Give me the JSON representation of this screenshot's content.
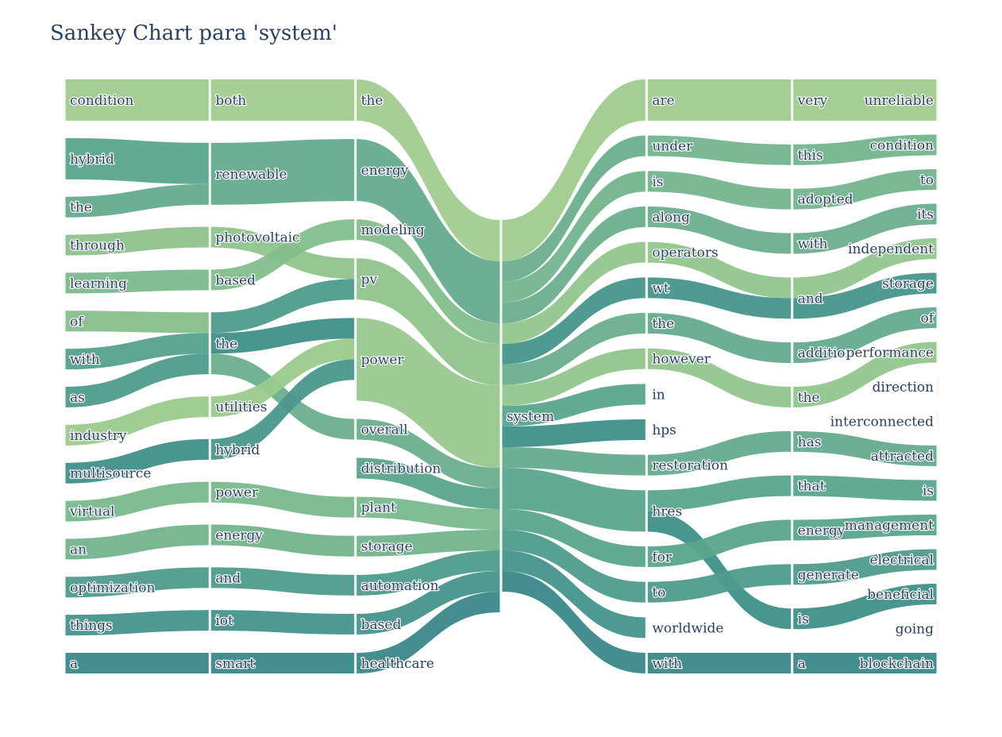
{
  "chart_data": {
    "type": "sankey",
    "title": "Sankey Chart para 'system'",
    "columns": [
      [
        "condition",
        "hybrid",
        "the",
        "through",
        "learning",
        "of",
        "with",
        "as",
        "industry",
        "multisource",
        "virtual",
        "an",
        "optimization",
        "things",
        "a"
      ],
      [
        "both",
        "renewable",
        "photovoltaic",
        "based",
        "the",
        "utilities",
        "hybrid",
        "power",
        "energy",
        "and",
        "iot",
        "smart"
      ],
      [
        "the",
        "energy",
        "modeling",
        "pv",
        "power",
        "overall",
        "distribution",
        "plant",
        "storage",
        "automation",
        "based",
        "healthcare"
      ],
      [
        "system"
      ],
      [
        "are",
        "under",
        "is",
        "along",
        "operators",
        "wt",
        "the",
        "however",
        "in",
        "hps",
        "restoration",
        "hres",
        "for",
        "to",
        "worldwide",
        "with"
      ],
      [
        "very",
        "this",
        "adopted",
        "with",
        "and",
        "addition",
        "the",
        "has",
        "that",
        "energy",
        "generate",
        "is",
        "a"
      ],
      [
        "unreliable",
        "condition",
        "to",
        "its",
        "independent",
        "storage",
        "of",
        "performance",
        "direction",
        "interconnected",
        "attracted",
        "is",
        "management",
        "electrical",
        "beneficial",
        "going",
        "blockchain"
      ]
    ],
    "node_values": [
      [
        2,
        2,
        1,
        1,
        1,
        1,
        1,
        1,
        1,
        1,
        1,
        1,
        1,
        1,
        1
      ],
      [
        2,
        3,
        1,
        1,
        3,
        1,
        1,
        1,
        1,
        1,
        1,
        1
      ],
      [
        2,
        3,
        1,
        2,
        4,
        1,
        1,
        1,
        1,
        1,
        1,
        1
      ],
      [
        19
      ],
      [
        2,
        1,
        1,
        1,
        1,
        1,
        1,
        1,
        1,
        1,
        1,
        2,
        1,
        1,
        1,
        1
      ],
      [
        2,
        1,
        1,
        1,
        2,
        1,
        1,
        1,
        1,
        1,
        1,
        1,
        1
      ],
      [
        2,
        1,
        1,
        1,
        1,
        1,
        1,
        1,
        1,
        1,
        1,
        1,
        1,
        1,
        1,
        1,
        1
      ]
    ],
    "links": [
      {
        "source": "0:condition",
        "target": "1:both",
        "value": 2,
        "color": "#9fcb8e"
      },
      {
        "source": "0:hybrid",
        "target": "1:renewable",
        "value": 2,
        "color": "#5aa58e"
      },
      {
        "source": "0:the",
        "target": "1:renewable",
        "value": 1,
        "color": "#64ab8f"
      },
      {
        "source": "0:through",
        "target": "1:photovoltaic",
        "value": 1,
        "color": "#8ec28c"
      },
      {
        "source": "0:learning",
        "target": "1:based",
        "value": 1,
        "color": "#7cb98e"
      },
      {
        "source": "0:of",
        "target": "1:the",
        "value": 1,
        "color": "#86bf8b"
      },
      {
        "source": "0:with",
        "target": "1:the",
        "value": 1,
        "color": "#55a18d"
      },
      {
        "source": "0:as",
        "target": "1:the",
        "value": 1,
        "color": "#4f9b8c"
      },
      {
        "source": "0:industry",
        "target": "1:utilities",
        "value": 1,
        "color": "#9aca8c"
      },
      {
        "source": "0:multisource",
        "target": "1:hybrid",
        "value": 1,
        "color": "#3f8f8a"
      },
      {
        "source": "0:virtual",
        "target": "1:power",
        "value": 1,
        "color": "#7ab98d"
      },
      {
        "source": "0:an",
        "target": "1:energy",
        "value": 1,
        "color": "#73b48e"
      },
      {
        "source": "0:optimization",
        "target": "1:and",
        "value": 1,
        "color": "#4f9c8c"
      },
      {
        "source": "0:things",
        "target": "1:iot",
        "value": 1,
        "color": "#45948b"
      },
      {
        "source": "0:a",
        "target": "1:smart",
        "value": 1,
        "color": "#3a888a"
      },
      {
        "source": "1:both",
        "target": "2:the",
        "value": 2,
        "color": "#a2cc8f"
      },
      {
        "source": "1:renewable",
        "target": "2:energy",
        "value": 3,
        "color": "#64ab8f"
      },
      {
        "source": "1:photovoltaic",
        "target": "2:pv",
        "value": 1,
        "color": "#8fc48c"
      },
      {
        "source": "1:based",
        "target": "2:modeling",
        "value": 1,
        "color": "#84be8c"
      },
      {
        "source": "1:the",
        "target": "2:pv",
        "value": 1,
        "color": "#4f9c8c"
      },
      {
        "source": "1:the",
        "target": "2:power",
        "value": 1,
        "color": "#3f8f8a"
      },
      {
        "source": "1:the",
        "target": "2:overall",
        "value": 1,
        "color": "#6caf8e"
      },
      {
        "source": "1:utilities",
        "target": "2:power",
        "value": 1,
        "color": "#9aca8c"
      },
      {
        "source": "1:hybrid",
        "target": "2:power",
        "value": 1,
        "color": "#4a978b"
      },
      {
        "source": "1:hybrid",
        "target": "2:distribution",
        "value": 0.0001,
        "color": "#5aa58e"
      },
      {
        "source": "1:power",
        "target": "2:plant",
        "value": 1,
        "color": "#7ab98d"
      },
      {
        "source": "1:energy",
        "target": "2:storage",
        "value": 1,
        "color": "#73b48e"
      },
      {
        "source": "1:and",
        "target": "2:automation",
        "value": 1,
        "color": "#4f9c8c"
      },
      {
        "source": "1:iot",
        "target": "2:based",
        "value": 1,
        "color": "#45948b"
      },
      {
        "source": "1:smart",
        "target": "2:healthcare",
        "value": 1,
        "color": "#3a888a"
      },
      {
        "source": "1:the",
        "target": "2:distribution",
        "value": 0.0001,
        "color": "#5aa58e"
      },
      {
        "source": "2:the",
        "target": "3:system",
        "value": 2,
        "color": "#a2cc8f"
      },
      {
        "source": "2:energy",
        "target": "3:system",
        "value": 3,
        "color": "#64ab8f"
      },
      {
        "source": "2:modeling",
        "target": "3:system",
        "value": 1,
        "color": "#84be8c"
      },
      {
        "source": "2:pv",
        "target": "3:system",
        "value": 2,
        "color": "#90c48c"
      },
      {
        "source": "2:power",
        "target": "3:system",
        "value": 4,
        "color": "#98c88d"
      },
      {
        "source": "2:overall",
        "target": "3:system",
        "value": 1,
        "color": "#6caf8e"
      },
      {
        "source": "2:distribution",
        "target": "3:system",
        "value": 1,
        "color": "#5aa58e"
      },
      {
        "source": "2:plant",
        "target": "3:system",
        "value": 1,
        "color": "#7ab98d"
      },
      {
        "source": "2:storage",
        "target": "3:system",
        "value": 1,
        "color": "#73b48e"
      },
      {
        "source": "2:automation",
        "target": "3:system",
        "value": 1,
        "color": "#4f9c8c"
      },
      {
        "source": "2:based",
        "target": "3:system",
        "value": 1,
        "color": "#45948b"
      },
      {
        "source": "2:healthcare",
        "target": "3:system",
        "value": 1,
        "color": "#3a888a"
      },
      {
        "source": "3:system",
        "target": "4:are",
        "value": 2,
        "color": "#9fcb8e"
      },
      {
        "source": "3:system",
        "target": "4:under",
        "value": 1,
        "color": "#6caf8e"
      },
      {
        "source": "3:system",
        "target": "4:is",
        "value": 1,
        "color": "#74b48e"
      },
      {
        "source": "3:system",
        "target": "4:along",
        "value": 1,
        "color": "#6caf8e"
      },
      {
        "source": "3:system",
        "target": "4:operators",
        "value": 1,
        "color": "#94c68c"
      },
      {
        "source": "3:system",
        "target": "4:wt",
        "value": 1,
        "color": "#46968b"
      },
      {
        "source": "3:system",
        "target": "4:the",
        "value": 1,
        "color": "#6caf8e"
      },
      {
        "source": "3:system",
        "target": "4:however",
        "value": 1,
        "color": "#94c68c"
      },
      {
        "source": "3:system",
        "target": "4:in",
        "value": 1,
        "color": "#5aa58e"
      },
      {
        "source": "3:system",
        "target": "4:hps",
        "value": 1,
        "color": "#3f8f8a"
      },
      {
        "source": "3:system",
        "target": "4:restoration",
        "value": 1,
        "color": "#64ab8f"
      },
      {
        "source": "3:system",
        "target": "4:hres",
        "value": 2,
        "color": "#5aa58e"
      },
      {
        "source": "3:system",
        "target": "4:for",
        "value": 1,
        "color": "#5aa58e"
      },
      {
        "source": "3:system",
        "target": "4:to",
        "value": 1,
        "color": "#4f9c8c"
      },
      {
        "source": "3:system",
        "target": "4:worldwide",
        "value": 1,
        "color": "#45948b"
      },
      {
        "source": "3:system",
        "target": "4:with",
        "value": 1,
        "color": "#3a888a"
      },
      {
        "source": "4:are",
        "target": "5:very",
        "value": 2,
        "color": "#9fcb8e"
      },
      {
        "source": "4:under",
        "target": "5:this",
        "value": 1,
        "color": "#74b48e"
      },
      {
        "source": "4:is",
        "target": "5:adopted",
        "value": 1,
        "color": "#74b48e"
      },
      {
        "source": "4:along",
        "target": "5:with",
        "value": 1,
        "color": "#6caf8e"
      },
      {
        "source": "4:operators",
        "target": "5:and",
        "value": 1,
        "color": "#94c68c"
      },
      {
        "source": "4:wt",
        "target": "5:and",
        "value": 1,
        "color": "#46968b"
      },
      {
        "source": "4:the",
        "target": "5:addition",
        "value": 1,
        "color": "#64ab8f"
      },
      {
        "source": "4:however",
        "target": "5:the",
        "value": 1,
        "color": "#94c68c"
      },
      {
        "source": "4:in",
        "target": "5:the",
        "value": 0.0001,
        "color": "#5aa58e"
      },
      {
        "source": "4:hps",
        "target": "5:the",
        "value": 0.0001,
        "color": "#3f8f8a"
      },
      {
        "source": "4:restoration",
        "target": "5:has",
        "value": 1,
        "color": "#64ab8f"
      },
      {
        "source": "4:hres",
        "target": "5:that",
        "value": 1,
        "color": "#5aa58e"
      },
      {
        "source": "4:hres",
        "target": "5:is",
        "value": 1,
        "color": "#3f8f8a"
      },
      {
        "source": "4:for",
        "target": "5:energy",
        "value": 1,
        "color": "#5aa58e"
      },
      {
        "source": "4:to",
        "target": "5:generate",
        "value": 1,
        "color": "#4f9c8c"
      },
      {
        "source": "4:worldwide",
        "target": "5:is",
        "value": 0.0001,
        "color": "#45948b"
      },
      {
        "source": "4:with",
        "target": "5:a",
        "value": 1,
        "color": "#3a888a"
      },
      {
        "source": "5:very",
        "target": "6:unreliable",
        "value": 2,
        "color": "#9fcb8e"
      },
      {
        "source": "5:this",
        "target": "6:condition",
        "value": 1,
        "color": "#74b48e"
      },
      {
        "source": "5:adopted",
        "target": "6:to",
        "value": 1,
        "color": "#74b48e"
      },
      {
        "source": "5:with",
        "target": "6:its",
        "value": 1,
        "color": "#6caf8e"
      },
      {
        "source": "5:and",
        "target": "6:independent",
        "value": 1,
        "color": "#94c68c"
      },
      {
        "source": "5:and",
        "target": "6:storage",
        "value": 1,
        "color": "#46968b"
      },
      {
        "source": "5:addition",
        "target": "6:of",
        "value": 1,
        "color": "#64ab8f"
      },
      {
        "source": "5:the",
        "target": "6:performance",
        "value": 1,
        "color": "#94c68c"
      },
      {
        "source": "5:the",
        "target": "6:direction",
        "value": 0.0001,
        "color": "#5aa58e"
      },
      {
        "source": "5:has",
        "target": "6:attracted",
        "value": 1,
        "color": "#64ab8f"
      },
      {
        "source": "5:that",
        "target": "6:is",
        "value": 1,
        "color": "#5aa58e"
      },
      {
        "source": "5:energy",
        "target": "6:management",
        "value": 1,
        "color": "#5aa58e"
      },
      {
        "source": "5:generate",
        "target": "6:electrical",
        "value": 1,
        "color": "#4f9c8c"
      },
      {
        "source": "5:is",
        "target": "6:beneficial",
        "value": 1,
        "color": "#3f8f8a"
      },
      {
        "source": "5:is",
        "target": "6:going",
        "value": 0.0001,
        "color": "#45948b"
      },
      {
        "source": "5:a",
        "target": "6:blockchain",
        "value": 1,
        "color": "#3a888a"
      }
    ],
    "node_colors": {
      "0": [
        "#a2cc8f",
        "#5aa58e",
        "#64ab8f",
        "#8ec28c",
        "#7cb98e",
        "#86bf8b",
        "#55a18d",
        "#4f9b8c",
        "#9aca8c",
        "#3f8f8a",
        "#7ab98d",
        "#73b48e",
        "#4f9c8c",
        "#45948b",
        "#3a888a"
      ],
      "1": [
        "#a2cc8f",
        "#64ab8f",
        "#8fc48c",
        "#84be8c",
        "#55a18d",
        "#9aca8c",
        "#4a978b",
        "#7ab98d",
        "#73b48e",
        "#4f9c8c",
        "#45948b",
        "#3a888a"
      ],
      "2": [
        "#a2cc8f",
        "#64ab8f",
        "#84be8c",
        "#90c48c",
        "#98c88d",
        "#6caf8e",
        "#5aa58e",
        "#7ab98d",
        "#73b48e",
        "#4f9c8c",
        "#45948b",
        "#3a888a"
      ],
      "3": [
        "#7cb98e"
      ],
      "4": [
        "#9fcb8e",
        "#6caf8e",
        "#74b48e",
        "#6caf8e",
        "#94c68c",
        "#46968b",
        "#6caf8e",
        "#94c68c",
        "#5aa58e",
        "#3f8f8a",
        "#64ab8f",
        "#5aa58e",
        "#5aa58e",
        "#4f9c8c",
        "#45948b",
        "#3a888a"
      ],
      "5": [
        "#9fcb8e",
        "#74b48e",
        "#74b48e",
        "#6caf8e",
        "#8fc48c",
        "#64ab8f",
        "#8fc48c",
        "#64ab8f",
        "#5aa58e",
        "#5aa58e",
        "#4f9c8c",
        "#3f8f8a",
        "#3a888a"
      ],
      "6": [
        "#9fcb8e",
        "#74b48e",
        "#74b48e",
        "#6caf8e",
        "#94c68c",
        "#46968b",
        "#64ab8f",
        "#94c68c",
        "#5aa58e",
        "#3f8f8a",
        "#64ab8f",
        "#5aa58e",
        "#5aa58e",
        "#4f9c8c",
        "#3f8f8a",
        "#45948b",
        "#3a888a"
      ]
    }
  }
}
